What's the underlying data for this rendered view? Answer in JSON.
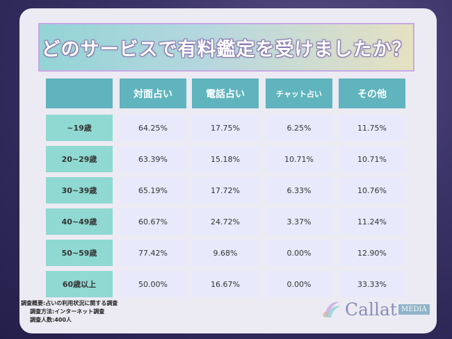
{
  "title": "どのサービスで有料鑑定を受けましたか？",
  "columns": [
    "対面占い",
    "電話占い",
    "チャット占い",
    "その他"
  ],
  "rows": [
    {
      "label": "~19歳",
      "values": [
        "64.25%",
        "17.75%",
        "6.25%",
        "11.75%"
      ]
    },
    {
      "label": "20~29歳",
      "values": [
        "63.39%",
        "15.18%",
        "10.71%",
        "10.71%"
      ]
    },
    {
      "label": "30~39歳",
      "values": [
        "65.19%",
        "17.72%",
        "6.33%",
        "10.76%"
      ]
    },
    {
      "label": "40~49歳",
      "values": [
        "60.67%",
        "24.72%",
        "3.37%",
        "11.24%"
      ]
    },
    {
      "label": "50~59歳",
      "values": [
        "77.42%",
        "9.68%",
        "0.00%",
        "12.90%"
      ]
    },
    {
      "label": "60歳以上",
      "values": [
        "50.00%",
        "16.67%",
        "0.00%",
        "33.33%"
      ]
    }
  ],
  "footnote": {
    "line1": "調査概要:占いの利用状況に関する調査",
    "line2": "調査方法:インターネット調査",
    "line3": "調査人数:400人"
  },
  "logo": {
    "text": "Callat",
    "badge": "MEDIA"
  },
  "colors": {
    "header": "#5fb4bd",
    "row_header": "#8fd9d2",
    "cell": "#e8e9fa",
    "card": "#ecebf3"
  }
}
